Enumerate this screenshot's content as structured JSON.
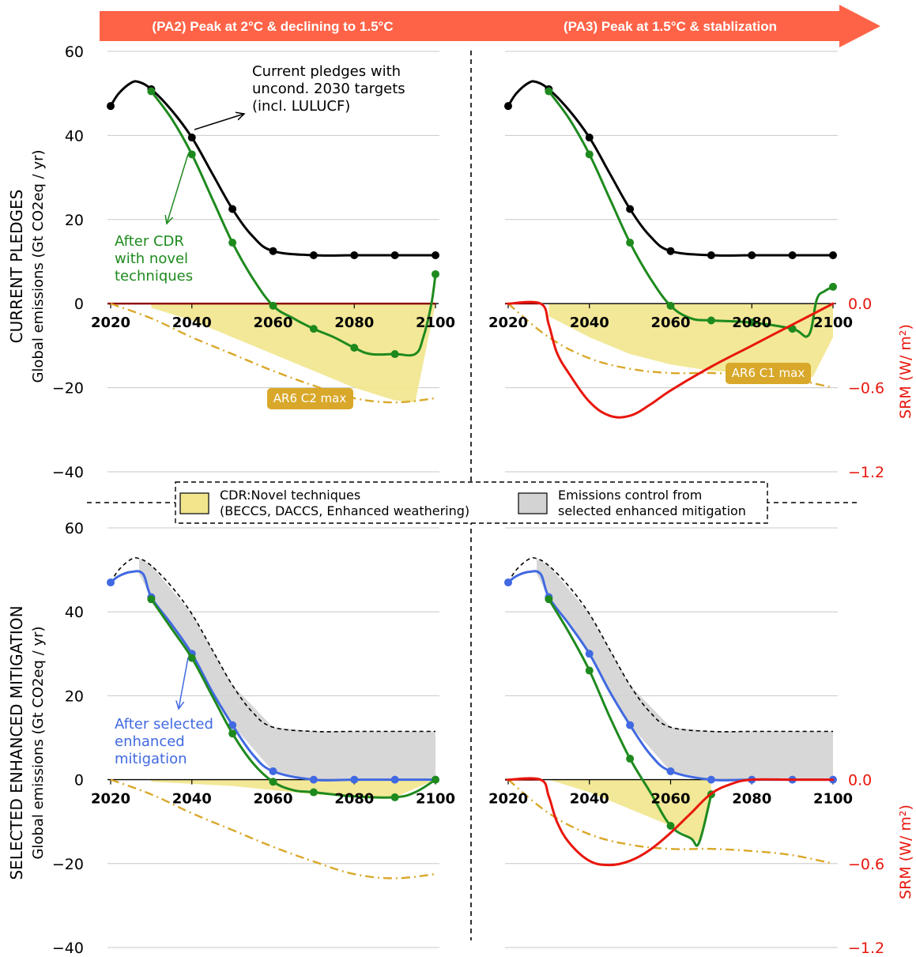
{
  "header": {
    "left_title": "(PA2) Peak at 2°C & declining to 1.5°C",
    "right_title": "(PA3) Peak at 1.5°C & stablization",
    "arrow_color": "#ff6347"
  },
  "colors": {
    "pledges": "#000000",
    "cdr_green": "#1e8a1e",
    "mitigation_blue": "#4169e1",
    "srm_red": "#e8160c",
    "ar6_gold": "#d9a82a",
    "cdr_fill": "#f1e68c",
    "control_fill": "#d3d3d3"
  },
  "row_labels": {
    "top_main": "CURRENT PLEDGES",
    "top_sub": "Global emissions (Gt CO2eq / yr)",
    "bottom_main": "SELECTED ENHANCED MITIGATION",
    "bottom_sub": "Global emissions (Gt CO2eq / yr)"
  },
  "right_axis_label": "SRM (W/ m²)",
  "y_ticks": [
    "60",
    "40",
    "20",
    "0",
    "−20",
    "−40"
  ],
  "srm_ticks": [
    "0.0",
    "−0.6",
    "−1.2"
  ],
  "x_ticks": [
    "2020",
    "2040",
    "2060",
    "2080",
    "2100"
  ],
  "annotations": {
    "pledges_line1": "Current pledges with",
    "pledges_line2": "uncond. 2030 targets",
    "pledges_line3": "(incl. LULUCF)",
    "cdr_line1": "After CDR",
    "cdr_line2": "with novel",
    "cdr_line3": "techniques",
    "mit_line1": "After selected",
    "mit_line2": "enhanced",
    "mit_line3": "mitigation",
    "ar6_c2": "AR6 C2 max",
    "ar6_c1": "AR6 C1 max"
  },
  "legend": {
    "cdr_line1": "CDR:Novel techniques",
    "cdr_line2": "(BECCS, DACCS, Enhanced weathering)",
    "ctrl_line1": "Emissions control from",
    "ctrl_line2": "selected enhanced mitigation"
  },
  "chart_data": [
    {
      "panel": "current-pledges-pa2",
      "type": "line",
      "ylim": [
        -40,
        60
      ],
      "xlim": [
        2020,
        2100
      ],
      "grid": true,
      "series": [
        {
          "name": "Current pledges with uncond. 2030 targets (incl. LULUCF)",
          "color": "#000000",
          "x": [
            2020,
            2022,
            2025,
            2027,
            2030,
            2035,
            2040,
            2045,
            2050,
            2055,
            2060,
            2070,
            2080,
            2090,
            2100
          ],
          "y": [
            47,
            50,
            52.5,
            52.7,
            51,
            46,
            39.5,
            31,
            22.5,
            16,
            12.5,
            11.5,
            11.5,
            11.5,
            11.5
          ],
          "markers": [
            2020,
            2030,
            2040,
            2050,
            2060,
            2070,
            2080,
            2090,
            2100
          ]
        },
        {
          "name": "After CDR with novel techniques",
          "color": "#1e8a1e",
          "x": [
            2030,
            2035,
            2040,
            2045,
            2050,
            2055,
            2060,
            2065,
            2070,
            2075,
            2080,
            2084,
            2090,
            2095,
            2097,
            2099,
            2100
          ],
          "y": [
            50.5,
            44,
            35.5,
            25,
            14.5,
            6,
            -0.5,
            -3.5,
            -6,
            -8,
            -10.5,
            -12,
            -12,
            -12,
            -8,
            0,
            7
          ],
          "markers": [
            2030,
            2040,
            2050,
            2060,
            2070,
            2080,
            2090,
            2100
          ]
        },
        {
          "name": "AR6 C2 max",
          "color": "#d9a82a",
          "style": "dash-dot",
          "x": [
            2020,
            2030,
            2040,
            2050,
            2060,
            2070,
            2080,
            2090,
            2100
          ],
          "y": [
            0,
            -3.5,
            -8,
            -12,
            -16,
            -19.5,
            -22.5,
            -23.5,
            -22.5
          ]
        },
        {
          "name": "CDR:Novel techniques",
          "type": "area",
          "color": "#f1e68c",
          "x": [
            2030,
            2040,
            2050,
            2060,
            2070,
            2080,
            2090,
            2095,
            2100
          ],
          "lower": [
            -1,
            -4,
            -8,
            -12,
            -16,
            -20,
            -23,
            -23.5,
            0
          ],
          "upper": [
            0,
            0,
            0,
            0,
            0,
            0,
            0,
            0,
            0
          ]
        }
      ]
    },
    {
      "panel": "current-pledges-pa3",
      "type": "line",
      "ylim": [
        -40,
        60
      ],
      "xlim": [
        2020,
        2100
      ],
      "srm_ylim": [
        -1.2,
        0.0
      ],
      "grid": true,
      "series": [
        {
          "name": "Current pledges with uncond. 2030 targets (incl. LULUCF)",
          "color": "#000000",
          "x": [
            2020,
            2022,
            2025,
            2027,
            2030,
            2035,
            2040,
            2045,
            2050,
            2055,
            2060,
            2070,
            2080,
            2090,
            2100
          ],
          "y": [
            47,
            50,
            52.5,
            52.7,
            51,
            46,
            39.5,
            31,
            22.5,
            16,
            12.5,
            11.5,
            11.5,
            11.5,
            11.5
          ],
          "markers": [
            2020,
            2030,
            2040,
            2050,
            2060,
            2070,
            2080,
            2090,
            2100
          ]
        },
        {
          "name": "After CDR with novel techniques",
          "color": "#1e8a1e",
          "x": [
            2030,
            2035,
            2040,
            2045,
            2050,
            2055,
            2060,
            2065,
            2070,
            2080,
            2090,
            2094,
            2096,
            2098,
            2100
          ],
          "y": [
            50.5,
            44,
            35.5,
            25,
            14.5,
            6,
            -0.5,
            -3.5,
            -4,
            -4.5,
            -6,
            -7.5,
            1,
            3,
            4
          ],
          "markers": [
            2030,
            2040,
            2050,
            2060,
            2070,
            2080,
            2090,
            2100
          ]
        },
        {
          "name": "AR6 C1 max",
          "color": "#d9a82a",
          "style": "dash-dot",
          "x": [
            2020,
            2030,
            2040,
            2050,
            2060,
            2070,
            2080,
            2090,
            2100
          ],
          "y": [
            0,
            -8,
            -13,
            -15.5,
            -16.5,
            -16.5,
            -17,
            -18,
            -20
          ]
        },
        {
          "name": "SRM",
          "color": "#e8160c",
          "axis": "right",
          "x": [
            2020,
            2028,
            2030,
            2032,
            2035,
            2040,
            2045,
            2050,
            2055,
            2060,
            2070,
            2080,
            2090,
            2100
          ],
          "y": [
            0,
            0,
            -0.15,
            -0.35,
            -0.5,
            -0.7,
            -0.8,
            -0.8,
            -0.72,
            -0.62,
            -0.45,
            -0.3,
            -0.15,
            0
          ]
        },
        {
          "name": "CDR:Novel techniques",
          "type": "area",
          "color": "#f1e68c",
          "x": [
            2030,
            2040,
            2050,
            2060,
            2070,
            2080,
            2090,
            2095,
            2100
          ],
          "lower": [
            -3,
            -8,
            -12,
            -14.5,
            -16,
            -16.5,
            -17,
            -17.5,
            -8
          ],
          "upper": [
            0,
            0,
            0,
            0,
            0,
            0,
            0,
            0,
            0
          ]
        }
      ]
    },
    {
      "panel": "selected-mitigation-pa2",
      "type": "line",
      "ylim": [
        -40,
        60
      ],
      "xlim": [
        2020,
        2100
      ],
      "grid": true,
      "series": [
        {
          "name": "Current pledges",
          "color": "#000000",
          "style": "dashed",
          "x": [
            2020,
            2022,
            2025,
            2027,
            2030,
            2035,
            2040,
            2045,
            2050,
            2055,
            2060,
            2070,
            2080,
            2090,
            2100
          ],
          "y": [
            47,
            50,
            52.5,
            52.7,
            51,
            46,
            39.5,
            31,
            22.5,
            16,
            12.5,
            11.5,
            11.5,
            11.5,
            11.5
          ]
        },
        {
          "name": "After selected enhanced mitigation",
          "color": "#4169e1",
          "x": [
            2020,
            2022,
            2025,
            2028,
            2030,
            2035,
            2040,
            2045,
            2050,
            2055,
            2060,
            2070,
            2080,
            2090,
            2100
          ],
          "y": [
            47,
            48.5,
            49.5,
            49,
            43.5,
            37,
            30,
            21,
            13,
            6,
            2,
            0,
            0,
            0,
            0
          ],
          "markers": [
            2020,
            2030,
            2040,
            2050,
            2060,
            2070,
            2080,
            2090,
            2100
          ]
        },
        {
          "name": "After CDR with novel techniques",
          "color": "#1e8a1e",
          "x": [
            2030,
            2035,
            2040,
            2045,
            2050,
            2055,
            2060,
            2065,
            2070,
            2080,
            2090,
            2095,
            2100
          ],
          "y": [
            43,
            36,
            29,
            20,
            11,
            4,
            -0.5,
            -2.5,
            -3,
            -4,
            -4.2,
            -3,
            0
          ],
          "markers": [
            2030,
            2040,
            2050,
            2060,
            2070,
            2090,
            2100
          ]
        },
        {
          "name": "AR6 C2 max",
          "color": "#d9a82a",
          "style": "dash-dot",
          "x": [
            2020,
            2030,
            2040,
            2050,
            2060,
            2070,
            2080,
            2090,
            2100
          ],
          "y": [
            0,
            -3.5,
            -8,
            -12,
            -16,
            -19.5,
            -22.5,
            -23.5,
            -22.5
          ]
        },
        {
          "name": "Emissions control from selected enhanced mitigation",
          "type": "area",
          "color": "#d3d3d3",
          "x": [
            2027,
            2030,
            2040,
            2050,
            2060,
            2070,
            2080,
            2090,
            2100
          ],
          "lower": [
            49,
            43.5,
            30,
            13,
            2,
            0,
            0,
            0,
            0
          ],
          "upper": [
            52.7,
            51,
            39.5,
            22.5,
            12.5,
            11.5,
            11.5,
            11.5,
            11.5
          ]
        },
        {
          "name": "CDR:Novel techniques",
          "type": "area",
          "color": "#f1e68c",
          "x": [
            2030,
            2040,
            2050,
            2060,
            2070,
            2080,
            2090,
            2100
          ],
          "lower": [
            -0.5,
            -1,
            -1.5,
            -2.5,
            -3.5,
            -4,
            -4.2,
            0
          ],
          "upper": [
            0,
            0,
            0,
            0,
            0,
            0,
            0,
            0
          ]
        }
      ]
    },
    {
      "panel": "selected-mitigation-pa3",
      "type": "line",
      "ylim": [
        -40,
        60
      ],
      "xlim": [
        2020,
        2100
      ],
      "srm_ylim": [
        -1.2,
        0.0
      ],
      "grid": true,
      "series": [
        {
          "name": "Current pledges",
          "color": "#000000",
          "style": "dashed",
          "x": [
            2020,
            2022,
            2025,
            2027,
            2030,
            2035,
            2040,
            2045,
            2050,
            2055,
            2060,
            2070,
            2080,
            2090,
            2100
          ],
          "y": [
            47,
            50,
            52.5,
            52.7,
            51,
            46,
            39.5,
            31,
            22.5,
            16,
            12.5,
            11.5,
            11.5,
            11.5,
            11.5
          ]
        },
        {
          "name": "After selected enhanced mitigation",
          "color": "#4169e1",
          "x": [
            2020,
            2022,
            2025,
            2028,
            2030,
            2035,
            2040,
            2045,
            2050,
            2055,
            2060,
            2070,
            2080,
            2090,
            2100
          ],
          "y": [
            47,
            48.5,
            49.5,
            49,
            43.5,
            37,
            30,
            21,
            13,
            6,
            2,
            0,
            0,
            0,
            0
          ],
          "markers": [
            2020,
            2030,
            2040,
            2050,
            2060,
            2070,
            2080,
            2090,
            2100
          ]
        },
        {
          "name": "After CDR with novel techniques",
          "color": "#1e8a1e",
          "x": [
            2030,
            2035,
            2040,
            2045,
            2050,
            2055,
            2060,
            2065,
            2067,
            2070
          ],
          "y": [
            43,
            35,
            26,
            15,
            5,
            -3,
            -11,
            -14,
            -15,
            -3.5
          ],
          "markers": [
            2030,
            2040,
            2050,
            2060,
            2070
          ]
        },
        {
          "name": "AR6 C1 max",
          "color": "#d9a82a",
          "style": "dash-dot",
          "x": [
            2020,
            2030,
            2040,
            2050,
            2060,
            2070,
            2080,
            2090,
            2100
          ],
          "y": [
            0,
            -8,
            -13,
            -15.5,
            -16.5,
            -16.5,
            -17,
            -18,
            -20
          ]
        },
        {
          "name": "SRM",
          "color": "#e8160c",
          "axis": "right",
          "x": [
            2020,
            2028,
            2030,
            2032,
            2035,
            2040,
            2045,
            2050,
            2055,
            2060,
            2065,
            2070,
            2075,
            2080,
            2090,
            2100
          ],
          "y": [
            0,
            0,
            -0.12,
            -0.3,
            -0.45,
            -0.58,
            -0.61,
            -0.58,
            -0.5,
            -0.38,
            -0.24,
            -0.1,
            -0.03,
            0,
            0,
            0
          ]
        },
        {
          "name": "Emissions control from selected enhanced mitigation",
          "type": "area",
          "color": "#d3d3d3",
          "x": [
            2027,
            2030,
            2040,
            2050,
            2060,
            2070,
            2080,
            2090,
            2100
          ],
          "lower": [
            49,
            43.5,
            30,
            13,
            2,
            0,
            0,
            0,
            0
          ],
          "upper": [
            52.7,
            51,
            39.5,
            22.5,
            12.5,
            11.5,
            11.5,
            11.5,
            11.5
          ]
        },
        {
          "name": "CDR:Novel techniques",
          "type": "area",
          "color": "#f1e68c",
          "x": [
            2030,
            2040,
            2050,
            2060,
            2067,
            2070
          ],
          "lower": [
            0,
            -3,
            -7,
            -11,
            -15,
            -3.5
          ],
          "upper": [
            0,
            0,
            0,
            0,
            0,
            0
          ]
        }
      ]
    }
  ]
}
